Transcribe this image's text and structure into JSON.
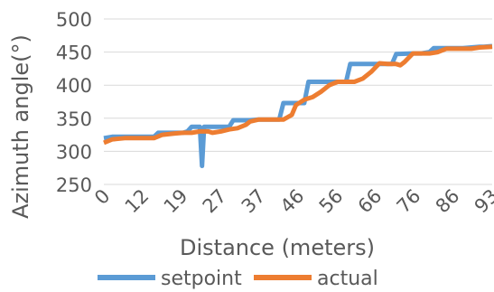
{
  "chart_data": {
    "type": "line",
    "title": "",
    "xlabel": "Distance (meters)",
    "ylabel": "Azimuth angle(°)",
    "ylim": [
      250,
      500
    ],
    "yticks": [
      "250",
      "300",
      "350",
      "400",
      "450",
      "500"
    ],
    "xlim": [
      0,
      93
    ],
    "xticks": [
      "0",
      "12",
      "19",
      "27",
      "37",
      "46",
      "56",
      "66",
      "76",
      "86",
      "93"
    ],
    "grid": true,
    "legend": "bottom",
    "series": [
      {
        "name": "setpoint",
        "color": "#5b9bd5",
        "points": [
          [
            0,
            320
          ],
          [
            2,
            322
          ],
          [
            5,
            322
          ],
          [
            10,
            322
          ],
          [
            12,
            322
          ],
          [
            13,
            328
          ],
          [
            16,
            328
          ],
          [
            19,
            328
          ],
          [
            20,
            330
          ],
          [
            21,
            337
          ],
          [
            23,
            337
          ],
          [
            23.5,
            278
          ],
          [
            24,
            337
          ],
          [
            27,
            337
          ],
          [
            30,
            337
          ],
          [
            31,
            347
          ],
          [
            35,
            347
          ],
          [
            37,
            348
          ],
          [
            40,
            348
          ],
          [
            42,
            348
          ],
          [
            43,
            373
          ],
          [
            46,
            373
          ],
          [
            48,
            373
          ],
          [
            49,
            405
          ],
          [
            53,
            405
          ],
          [
            55,
            405
          ],
          [
            56,
            405
          ],
          [
            58,
            405
          ],
          [
            59,
            432
          ],
          [
            63,
            432
          ],
          [
            66,
            432
          ],
          [
            68,
            432
          ],
          [
            69,
            432
          ],
          [
            70,
            447
          ],
          [
            74,
            448
          ],
          [
            76,
            448
          ],
          [
            78,
            450
          ],
          [
            79,
            456
          ],
          [
            83,
            456
          ],
          [
            86,
            456
          ],
          [
            90,
            458
          ],
          [
            91,
            458
          ],
          [
            93,
            459
          ]
        ]
      },
      {
        "name": "actual",
        "color": "#ed7d31",
        "points": [
          [
            0,
            313
          ],
          [
            2,
            318
          ],
          [
            5,
            320
          ],
          [
            10,
            320
          ],
          [
            12,
            320
          ],
          [
            14,
            325
          ],
          [
            17,
            327
          ],
          [
            19,
            328
          ],
          [
            21,
            328
          ],
          [
            23,
            330
          ],
          [
            25,
            330
          ],
          [
            26,
            328
          ],
          [
            28,
            330
          ],
          [
            30,
            333
          ],
          [
            32,
            335
          ],
          [
            34,
            340
          ],
          [
            35,
            345
          ],
          [
            37,
            348
          ],
          [
            40,
            348
          ],
          [
            43,
            348
          ],
          [
            45,
            355
          ],
          [
            46,
            370
          ],
          [
            48,
            378
          ],
          [
            50,
            382
          ],
          [
            52,
            390
          ],
          [
            54,
            400
          ],
          [
            56,
            405
          ],
          [
            58,
            405
          ],
          [
            60,
            405
          ],
          [
            62,
            410
          ],
          [
            64,
            420
          ],
          [
            66,
            433
          ],
          [
            68,
            432
          ],
          [
            70,
            432
          ],
          [
            71,
            430
          ],
          [
            72,
            435
          ],
          [
            74,
            448
          ],
          [
            76,
            448
          ],
          [
            78,
            448
          ],
          [
            80,
            450
          ],
          [
            82,
            455
          ],
          [
            84,
            455
          ],
          [
            86,
            455
          ],
          [
            88,
            455
          ],
          [
            90,
            457
          ],
          [
            93,
            458
          ]
        ]
      }
    ]
  }
}
